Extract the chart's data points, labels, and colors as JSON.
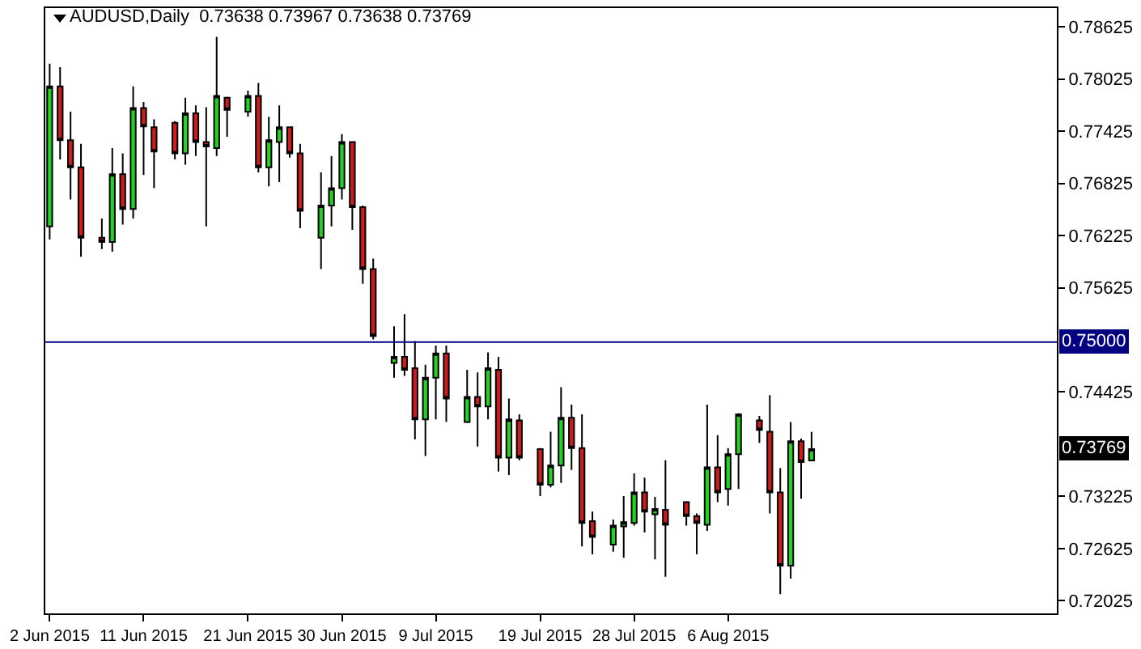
{
  "chart_data": {
    "type": "candlestick",
    "title": "AUDUSD,Daily  0.73638 0.73967 0.73638 0.73769",
    "x": [
      "2015-06-02",
      "2015-06-03",
      "2015-06-04",
      "2015-06-05",
      "2015-06-07",
      "2015-06-08",
      "2015-06-09",
      "2015-06-10",
      "2015-06-11",
      "2015-06-12",
      "2015-06-14",
      "2015-06-15",
      "2015-06-16",
      "2015-06-17",
      "2015-06-18",
      "2015-06-19",
      "2015-06-21",
      "2015-06-22",
      "2015-06-23",
      "2015-06-24",
      "2015-06-25",
      "2015-06-26",
      "2015-06-28",
      "2015-06-29",
      "2015-06-30",
      "2015-07-01",
      "2015-07-02",
      "2015-07-03",
      "2015-07-05",
      "2015-07-06",
      "2015-07-07",
      "2015-07-08",
      "2015-07-09",
      "2015-07-10",
      "2015-07-12",
      "2015-07-13",
      "2015-07-14",
      "2015-07-15",
      "2015-07-16",
      "2015-07-17",
      "2015-07-19",
      "2015-07-20",
      "2015-07-21",
      "2015-07-22",
      "2015-07-23",
      "2015-07-24",
      "2015-07-26",
      "2015-07-27",
      "2015-07-28",
      "2015-07-29",
      "2015-07-30",
      "2015-07-31",
      "2015-08-02",
      "2015-08-03",
      "2015-08-04",
      "2015-08-05",
      "2015-08-06",
      "2015-08-07",
      "2015-08-09",
      "2015-08-10",
      "2015-08-11",
      "2015-08-12",
      "2015-08-13",
      "2015-08-14"
    ],
    "ohlc": [
      [
        0.7633,
        0.782,
        0.7618,
        0.7794
      ],
      [
        0.7794,
        0.7816,
        0.771,
        0.7732
      ],
      [
        0.7732,
        0.7765,
        0.7664,
        0.7701
      ],
      [
        0.7701,
        0.7728,
        0.7598,
        0.762
      ],
      [
        0.762,
        0.7642,
        0.7607,
        0.7615
      ],
      [
        0.7615,
        0.7723,
        0.7604,
        0.7693
      ],
      [
        0.7693,
        0.7717,
        0.7635,
        0.7653
      ],
      [
        0.7653,
        0.7794,
        0.7642,
        0.7769
      ],
      [
        0.7769,
        0.7776,
        0.7692,
        0.7748
      ],
      [
        0.7747,
        0.7756,
        0.7677,
        0.7719
      ],
      [
        0.7752,
        0.7754,
        0.771,
        0.7717
      ],
      [
        0.7717,
        0.7781,
        0.7704,
        0.7763
      ],
      [
        0.7763,
        0.7772,
        0.7714,
        0.773
      ],
      [
        0.773,
        0.777,
        0.7633,
        0.7725
      ],
      [
        0.7723,
        0.7851,
        0.7714,
        0.7783
      ],
      [
        0.7781,
        0.7782,
        0.7736,
        0.7767
      ],
      [
        0.7765,
        0.7789,
        0.7759,
        0.7783
      ],
      [
        0.7783,
        0.7798,
        0.7695,
        0.7701
      ],
      [
        0.7701,
        0.7759,
        0.7679,
        0.7732
      ],
      [
        0.773,
        0.7772,
        0.7684,
        0.7747
      ],
      [
        0.7747,
        0.7748,
        0.7712,
        0.7717
      ],
      [
        0.7717,
        0.7728,
        0.7631,
        0.7651
      ],
      [
        0.762,
        0.7695,
        0.7584,
        0.7657
      ],
      [
        0.7657,
        0.7714,
        0.7633,
        0.7677
      ],
      [
        0.7677,
        0.7739,
        0.7664,
        0.773
      ],
      [
        0.773,
        0.7731,
        0.7629,
        0.7655
      ],
      [
        0.7655,
        0.7657,
        0.7567,
        0.7584
      ],
      [
        0.7584,
        0.7596,
        0.7503,
        0.7507
      ],
      [
        0.7476,
        0.7518,
        0.7459,
        0.7483
      ],
      [
        0.7483,
        0.7532,
        0.7461,
        0.7468
      ],
      [
        0.747,
        0.7501,
        0.7388,
        0.7411
      ],
      [
        0.7411,
        0.7474,
        0.7369,
        0.7459
      ],
      [
        0.7459,
        0.7496,
        0.7411,
        0.7487
      ],
      [
        0.7487,
        0.7496,
        0.7408,
        0.7435
      ],
      [
        0.7408,
        0.7468,
        0.7407,
        0.7437
      ],
      [
        0.7437,
        0.7465,
        0.738,
        0.7426
      ],
      [
        0.7426,
        0.7488,
        0.7411,
        0.747
      ],
      [
        0.7468,
        0.7483,
        0.7351,
        0.7367
      ],
      [
        0.7367,
        0.7435,
        0.7347,
        0.7411
      ],
      [
        0.741,
        0.7417,
        0.7364,
        0.7367
      ],
      [
        0.7377,
        0.7378,
        0.7323,
        0.7336
      ],
      [
        0.7336,
        0.7397,
        0.7333,
        0.7358
      ],
      [
        0.7358,
        0.7448,
        0.7338,
        0.7413
      ],
      [
        0.7413,
        0.7428,
        0.7353,
        0.7378
      ],
      [
        0.7378,
        0.7417,
        0.7265,
        0.7292
      ],
      [
        0.7294,
        0.7305,
        0.7256,
        0.7276
      ],
      [
        0.7267,
        0.7296,
        0.7259,
        0.7289
      ],
      [
        0.7288,
        0.7323,
        0.7252,
        0.7293
      ],
      [
        0.7292,
        0.7349,
        0.7289,
        0.7327
      ],
      [
        0.7327,
        0.7344,
        0.7281,
        0.7305
      ],
      [
        0.7302,
        0.7322,
        0.725,
        0.7308
      ],
      [
        0.7307,
        0.7364,
        0.723,
        0.729
      ],
      [
        0.7316,
        0.7317,
        0.7289,
        0.73
      ],
      [
        0.73,
        0.7303,
        0.7256,
        0.7292
      ],
      [
        0.729,
        0.7428,
        0.7283,
        0.7356
      ],
      [
        0.7356,
        0.7393,
        0.7316,
        0.7327
      ],
      [
        0.7331,
        0.7378,
        0.7312,
        0.7371
      ],
      [
        0.7371,
        0.7418,
        0.7331,
        0.7417
      ],
      [
        0.741,
        0.7415,
        0.7384,
        0.7399
      ],
      [
        0.7397,
        0.7439,
        0.7303,
        0.7327
      ],
      [
        0.7327,
        0.7355,
        0.721,
        0.7243
      ],
      [
        0.7243,
        0.7408,
        0.7228,
        0.7386
      ],
      [
        0.7386,
        0.7389,
        0.732,
        0.7362
      ],
      [
        0.73638,
        0.73967,
        0.73638,
        0.73769
      ]
    ],
    "colors": [
      "#22d322",
      "#cc1c1c",
      "#cc1c1c",
      "#cc1c1c",
      "#cc1c1c",
      "#22d322",
      "#cc1c1c",
      "#22d322",
      "#cc1c1c",
      "#cc1c1c",
      "#cc1c1c",
      "#22d322",
      "#cc1c1c",
      "#cc1c1c",
      "#22d322",
      "#cc1c1c",
      "#22d322",
      "#cc1c1c",
      "#22d322",
      "#22d322",
      "#cc1c1c",
      "#cc1c1c",
      "#22d322",
      "#22d322",
      "#22d322",
      "#cc1c1c",
      "#cc1c1c",
      "#cc1c1c",
      "#22d322",
      "#cc1c1c",
      "#cc1c1c",
      "#22d322",
      "#22d322",
      "#cc1c1c",
      "#22d322",
      "#cc1c1c",
      "#22d322",
      "#cc1c1c",
      "#22d322",
      "#cc1c1c",
      "#cc1c1c",
      "#22d322",
      "#22d322",
      "#cc1c1c",
      "#cc1c1c",
      "#cc1c1c",
      "#22d322",
      "#22d322",
      "#22d322",
      "#cc1c1c",
      "#22d322",
      "#cc1c1c",
      "#cc1c1c",
      "#cc1c1c",
      "#22d322",
      "#cc1c1c",
      "#22d322",
      "#22d322",
      "#cc1c1c",
      "#cc1c1c",
      "#cc1c1c",
      "#22d322",
      "#cc1c1c",
      "#22d322"
    ],
    "xlim": [
      "2015-06-01T14:00",
      "2015-09-06T12:00"
    ],
    "xticks": [
      {
        "value": "2015-06-02",
        "label": "2 Jun 2015"
      },
      {
        "value": "2015-06-11",
        "label": "11 Jun 2015"
      },
      {
        "value": "2015-06-21",
        "label": "21 Jun 2015"
      },
      {
        "value": "2015-06-30",
        "label": "30 Jun 2015"
      },
      {
        "value": "2015-07-09",
        "label": "9 Jul 2015"
      },
      {
        "value": "2015-07-19",
        "label": "19 Jul 2015"
      },
      {
        "value": "2015-07-28",
        "label": "28 Jul 2015"
      },
      {
        "value": "2015-08-06",
        "label": "6 Aug 2015"
      }
    ],
    "ylim": [
      0.7188,
      0.7884
    ],
    "yticks": [
      0.78625,
      0.78025,
      0.77425,
      0.76825,
      0.76225,
      0.75625,
      0.74425,
      0.73225,
      0.72625,
      0.72025
    ],
    "ref_lines": [
      {
        "axis": "y",
        "value": 0.75,
        "label": "0.75000",
        "color": "#000080"
      }
    ],
    "annotations": [
      {
        "text": "0.73769",
        "y": 0.73769
      }
    ],
    "grid": false
  }
}
